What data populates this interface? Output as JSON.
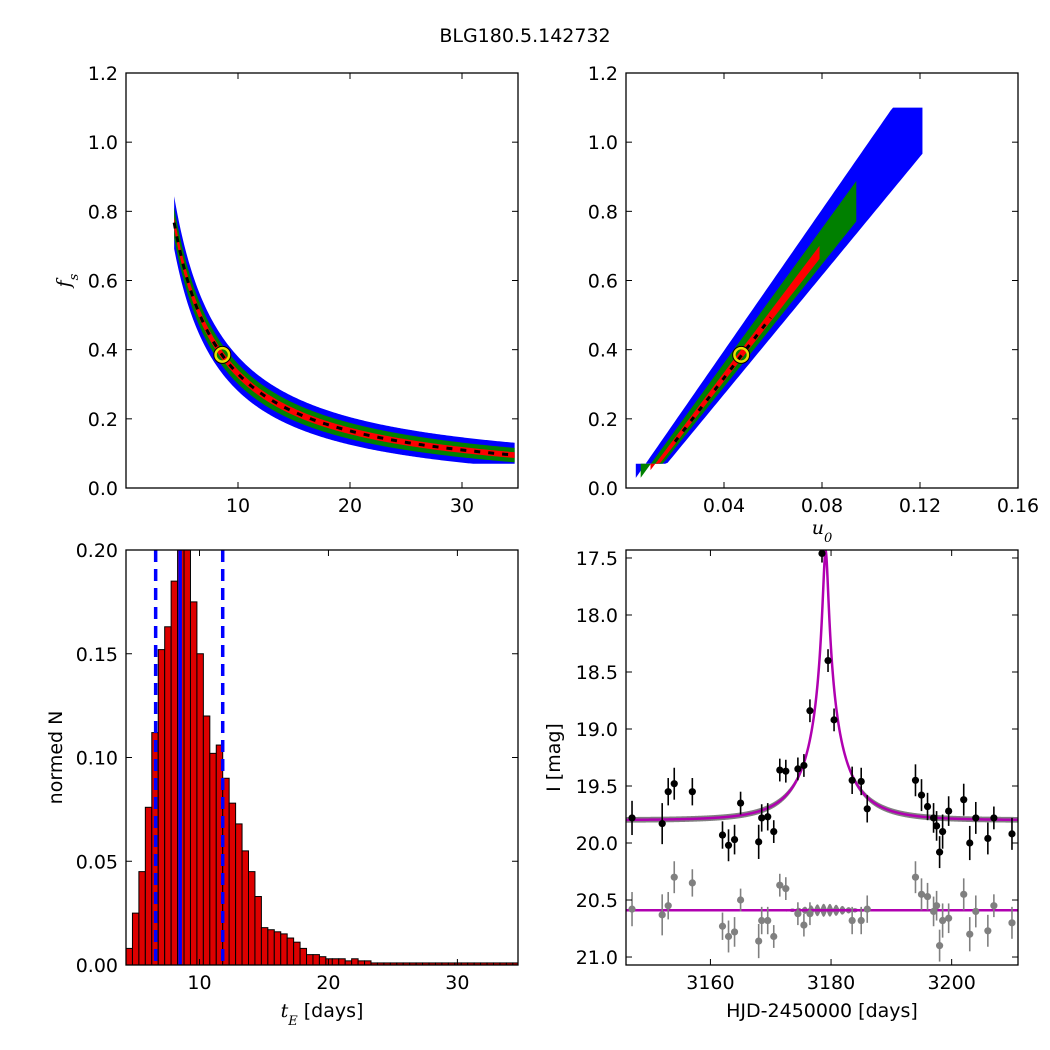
{
  "figure": {
    "title": "BLG180.5.142732"
  },
  "colors": {
    "outer": "#0000ff",
    "mid": "#008000",
    "inner": "#ff0000",
    "core": "#000000",
    "marker_ring": "#e8e000",
    "hist_fill": "#dd0000",
    "hist_edge": "#000000",
    "vline": "#0000ff",
    "model": "#b000b0",
    "model_band": "#808080",
    "data_main": "#000000",
    "data_resid": "#808080"
  },
  "chart_data": [
    {
      "id": "fs-vs-tE",
      "type": "heatmap",
      "xlabel": "",
      "ylabel": "f",
      "ylabel_sub": "s",
      "xlim": [
        0,
        35
      ],
      "ylim": [
        0,
        1.2
      ],
      "xticks": [
        10,
        20,
        30
      ],
      "xtick_labels": [
        "10",
        "20",
        "30"
      ],
      "yticks": [
        0,
        0.2,
        0.4,
        0.6,
        0.8,
        1.0,
        1.2
      ],
      "ytick_labels": [
        "0.0",
        "0.2",
        "0.4",
        "0.6",
        "0.8",
        "1.0",
        "1.2"
      ],
      "relation": "fs = 3.3 / tE",
      "confidence_regions": {
        "outer_width": 0.06,
        "mid_width": 0.035,
        "inner_width": 0.014
      },
      "x_extent": [
        4.3,
        34.8
      ],
      "best_fit": {
        "x": 8.6,
        "y": 0.385
      }
    },
    {
      "id": "fs-vs-u0",
      "type": "heatmap",
      "xlabel": "u",
      "xlabel_sub": "0",
      "ylabel": "",
      "xlim": [
        0,
        0.16
      ],
      "ylim": [
        0,
        1.2
      ],
      "xticks": [
        0.04,
        0.08,
        0.12,
        0.16
      ],
      "xtick_labels": [
        "0.04",
        "0.08",
        "0.12",
        "0.16"
      ],
      "yticks": [
        0,
        0.2,
        0.4,
        0.6,
        0.8,
        1.0,
        1.2
      ],
      "ytick_labels": [
        "0.0",
        "0.2",
        "0.4",
        "0.6",
        "0.8",
        "1.0",
        "1.2"
      ],
      "relation": "fs = 9.2 * u0 - 0.05",
      "x_extent": [
        0.004,
        0.122
      ],
      "best_fit": {
        "x": 0.047,
        "y": 0.385
      }
    },
    {
      "id": "tE-histogram",
      "type": "bar",
      "xlabel": "t",
      "xlabel_sub": "E",
      "xlabel_unit": " [days]",
      "ylabel": "normed N",
      "xlim": [
        4.3,
        34.7
      ],
      "ylim": [
        0,
        0.2
      ],
      "xticks": [
        10,
        20,
        30
      ],
      "xtick_labels": [
        "10",
        "20",
        "30"
      ],
      "yticks": [
        0,
        0.05,
        0.1,
        0.15,
        0.2
      ],
      "ytick_labels": [
        "0.00",
        "0.05",
        "0.10",
        "0.15",
        "0.20"
      ],
      "bin_start": 4.3,
      "bin_width": 0.5,
      "values": [
        0.008,
        0.025,
        0.045,
        0.076,
        0.112,
        0.152,
        0.163,
        0.185,
        0.2,
        0.2,
        0.175,
        0.15,
        0.12,
        0.102,
        0.106,
        0.09,
        0.078,
        0.068,
        0.055,
        0.045,
        0.033,
        0.018,
        0.017,
        0.016,
        0.015,
        0.013,
        0.011,
        0.008,
        0.005,
        0.005,
        0.004,
        0.003,
        0.003,
        0.003,
        0.002,
        0.003,
        0.002,
        0.002,
        0.001,
        0.001,
        0.001,
        0.001,
        0.001,
        0.001,
        0.001,
        0.001,
        0.001,
        0.001,
        0.001,
        0.001,
        0.001,
        0.001,
        0.001,
        0.001,
        0.001,
        0.001,
        0.001,
        0.001,
        0.001,
        0.001,
        0.001
      ],
      "median": 8.5,
      "interval": [
        6.6,
        11.8
      ]
    },
    {
      "id": "light-curve",
      "type": "scatter",
      "xlabel": "HJD-2450000 [days]",
      "ylabel": "I [mag]",
      "xlim": [
        3146,
        3211
      ],
      "ylim": [
        21.07,
        17.43
      ],
      "xticks": [
        3160,
        3180,
        3200
      ],
      "xtick_labels": [
        "3160",
        "3180",
        "3200"
      ],
      "yticks": [
        17.5,
        18.0,
        18.5,
        19.0,
        19.5,
        20.0,
        20.5,
        21.0
      ],
      "ytick_labels": [
        "17.5",
        "18.0",
        "18.5",
        "19.0",
        "19.5",
        "20.0",
        "20.5",
        "21.0"
      ],
      "model": {
        "t0": 3179.1,
        "tE": 8.6,
        "u0": 0.047,
        "baseline": 19.8,
        "fs": 0.385
      },
      "residual_baseline": 20.59,
      "points": [
        {
          "x": 3147,
          "y": 19.78,
          "err": 0.15
        },
        {
          "x": 3152,
          "y": 19.83,
          "err": 0.18
        },
        {
          "x": 3153,
          "y": 19.55,
          "err": 0.12
        },
        {
          "x": 3154,
          "y": 19.48,
          "err": 0.14
        },
        {
          "x": 3157,
          "y": 19.55,
          "err": 0.12
        },
        {
          "x": 3162,
          "y": 19.93,
          "err": 0.12
        },
        {
          "x": 3163,
          "y": 20.02,
          "err": 0.14
        },
        {
          "x": 3164,
          "y": 19.97,
          "err": 0.13
        },
        {
          "x": 3165,
          "y": 19.65,
          "err": 0.1
        },
        {
          "x": 3168,
          "y": 19.99,
          "err": 0.15
        },
        {
          "x": 3168.5,
          "y": 19.78,
          "err": 0.12
        },
        {
          "x": 3169.5,
          "y": 19.77,
          "err": 0.12
        },
        {
          "x": 3170.5,
          "y": 19.9,
          "err": 0.1
        },
        {
          "x": 3171.5,
          "y": 19.36,
          "err": 0.1
        },
        {
          "x": 3172.5,
          "y": 19.37,
          "err": 0.1
        },
        {
          "x": 3174.5,
          "y": 19.35,
          "err": 0.1
        },
        {
          "x": 3175.5,
          "y": 19.32,
          "err": 0.1
        },
        {
          "x": 3176.5,
          "y": 18.84,
          "err": 0.1
        },
        {
          "x": 3178.5,
          "y": 17.46,
          "err": 0.08
        },
        {
          "x": 3179.5,
          "y": 18.4,
          "err": 0.1
        },
        {
          "x": 3180.5,
          "y": 18.92,
          "err": 0.1
        },
        {
          "x": 3183.5,
          "y": 19.45,
          "err": 0.12
        },
        {
          "x": 3185,
          "y": 19.46,
          "err": 0.12
        },
        {
          "x": 3186,
          "y": 19.7,
          "err": 0.12
        },
        {
          "x": 3194,
          "y": 19.45,
          "err": 0.14
        },
        {
          "x": 3195,
          "y": 19.58,
          "err": 0.14
        },
        {
          "x": 3196,
          "y": 19.68,
          "err": 0.12
        },
        {
          "x": 3197,
          "y": 19.78,
          "err": 0.13
        },
        {
          "x": 3197.5,
          "y": 19.85,
          "err": 0.13
        },
        {
          "x": 3198,
          "y": 20.08,
          "err": 0.14
        },
        {
          "x": 3198.5,
          "y": 19.9,
          "err": 0.15
        },
        {
          "x": 3199.5,
          "y": 19.72,
          "err": 0.13
        },
        {
          "x": 3202,
          "y": 19.62,
          "err": 0.14
        },
        {
          "x": 3203,
          "y": 20.0,
          "err": 0.15
        },
        {
          "x": 3204,
          "y": 19.78,
          "err": 0.14
        },
        {
          "x": 3206,
          "y": 19.96,
          "err": 0.14
        },
        {
          "x": 3207,
          "y": 19.78,
          "err": 0.1
        },
        {
          "x": 3210,
          "y": 19.92,
          "err": 0.14
        }
      ],
      "residual_points": [
        {
          "x": 3147,
          "y": 20.58,
          "err": 0.15
        },
        {
          "x": 3152,
          "y": 20.63,
          "err": 0.18
        },
        {
          "x": 3153,
          "y": 20.55,
          "err": 0.12
        },
        {
          "x": 3154,
          "y": 20.3,
          "err": 0.14
        },
        {
          "x": 3157,
          "y": 20.35,
          "err": 0.12
        },
        {
          "x": 3162,
          "y": 20.73,
          "err": 0.12
        },
        {
          "x": 3163,
          "y": 20.82,
          "err": 0.14
        },
        {
          "x": 3164,
          "y": 20.78,
          "err": 0.13
        },
        {
          "x": 3165,
          "y": 20.5,
          "err": 0.1
        },
        {
          "x": 3168,
          "y": 20.86,
          "err": 0.15
        },
        {
          "x": 3168.5,
          "y": 20.68,
          "err": 0.12
        },
        {
          "x": 3169.5,
          "y": 20.68,
          "err": 0.12
        },
        {
          "x": 3170.5,
          "y": 20.82,
          "err": 0.1
        },
        {
          "x": 3171.5,
          "y": 20.37,
          "err": 0.1
        },
        {
          "x": 3172.5,
          "y": 20.4,
          "err": 0.1
        },
        {
          "x": 3174.5,
          "y": 20.62,
          "err": 0.1
        },
        {
          "x": 3175.5,
          "y": 20.72,
          "err": 0.1
        },
        {
          "x": 3176.5,
          "y": 20.62,
          "err": 0.1
        },
        {
          "x": 3183.5,
          "y": 20.68,
          "err": 0.12
        },
        {
          "x": 3185,
          "y": 20.68,
          "err": 0.12
        },
        {
          "x": 3186,
          "y": 20.58,
          "err": 0.12
        },
        {
          "x": 3194,
          "y": 20.3,
          "err": 0.14
        },
        {
          "x": 3195,
          "y": 20.45,
          "err": 0.14
        },
        {
          "x": 3196,
          "y": 20.47,
          "err": 0.12
        },
        {
          "x": 3197,
          "y": 20.6,
          "err": 0.13
        },
        {
          "x": 3197.5,
          "y": 20.55,
          "err": 0.13
        },
        {
          "x": 3198,
          "y": 20.9,
          "err": 0.14
        },
        {
          "x": 3198.5,
          "y": 20.68,
          "err": 0.15
        },
        {
          "x": 3199.5,
          "y": 20.66,
          "err": 0.13
        },
        {
          "x": 3202,
          "y": 20.45,
          "err": 0.14
        },
        {
          "x": 3203,
          "y": 20.8,
          "err": 0.15
        },
        {
          "x": 3204,
          "y": 20.6,
          "err": 0.14
        },
        {
          "x": 3206,
          "y": 20.77,
          "err": 0.14
        },
        {
          "x": 3207,
          "y": 20.55,
          "err": 0.1
        },
        {
          "x": 3210,
          "y": 20.7,
          "err": 0.14
        }
      ]
    }
  ]
}
